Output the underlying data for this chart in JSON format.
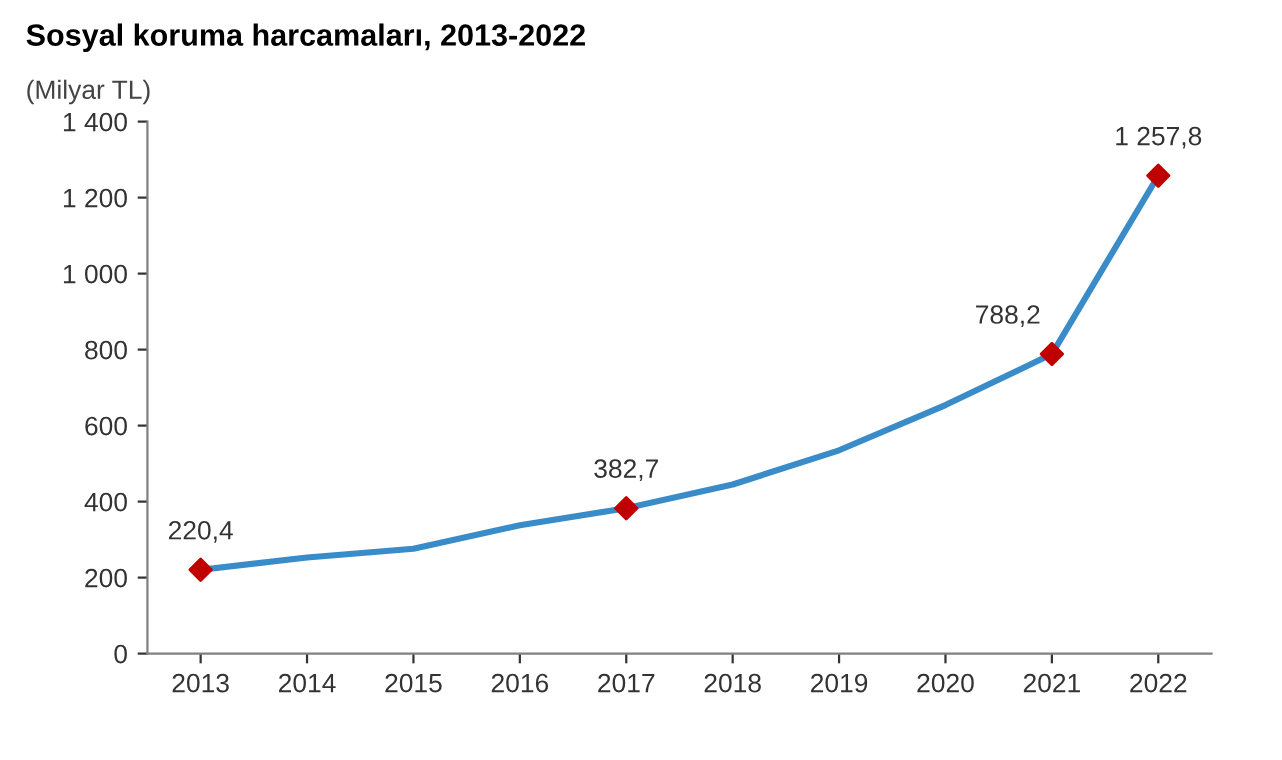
{
  "chart_data": {
    "type": "line",
    "title": "Sosyal koruma harcamaları, 2013-2022",
    "ylabel": "(Milyar TL)",
    "categories": [
      "2013",
      "2014",
      "2015",
      "2016",
      "2017",
      "2018",
      "2019",
      "2020",
      "2021",
      "2022"
    ],
    "series": [
      {
        "color": "#3a8cc8",
        "values": [
          220.4,
          253,
          276,
          338,
          382.7,
          445,
          535,
          654,
          788.2,
          1257.8
        ],
        "marker": "none",
        "line_style": "solid"
      },
      {
        "type": "scatter",
        "color": "#c00000",
        "values": [
          220.4,
          null,
          null,
          null,
          382.7,
          null,
          null,
          null,
          788.2,
          1257.8
        ],
        "marker": "diamond",
        "value_labels": [
          "220,4",
          null,
          null,
          null,
          "382,7",
          null,
          null,
          null,
          "788,2",
          "1 257,8"
        ]
      }
    ],
    "ylim": [
      0,
      1400
    ],
    "yticks": [
      0,
      {
        "value": 200,
        "label": "200"
      },
      {
        "value": 400,
        "label": "400"
      },
      {
        "value": 600,
        "label": "600"
      },
      {
        "value": 800,
        "label": "800"
      },
      {
        "value": 1000,
        "label": "1 000"
      },
      {
        "value": 1200,
        "label": "1 200"
      },
      {
        "value": 1400,
        "label": "1 400"
      }
    ],
    "grid": false,
    "legend": false
  }
}
